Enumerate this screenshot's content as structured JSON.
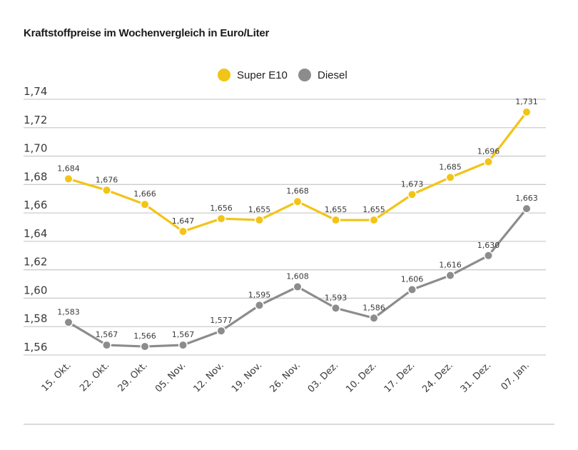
{
  "chart_data": {
    "type": "line",
    "title": "Kraftstoffpreise im Wochenvergleich in Euro/Liter",
    "xlabel": "",
    "ylabel": "",
    "categories": [
      "15. Okt.",
      "22. Okt.",
      "29. Okt.",
      "05. Nov.",
      "12. Nov.",
      "19. Nov.",
      "26. Nov.",
      "03. Dez.",
      "10. Dez.",
      "17. Dez.",
      "24. Dez.",
      "31. Dez.",
      "07. Jan."
    ],
    "series": [
      {
        "name": "Super E10",
        "color": "#f2c417",
        "values": [
          1.684,
          1.676,
          1.666,
          1.647,
          1.656,
          1.655,
          1.668,
          1.655,
          1.655,
          1.673,
          1.685,
          1.696,
          1.731
        ],
        "labels": [
          "1,684",
          "1,676",
          "1,666",
          "1,647",
          "1,656",
          "1,655",
          "1,668",
          "1,655",
          "1,655",
          "1,673",
          "1,685",
          "1,696",
          "1,731"
        ]
      },
      {
        "name": "Diesel",
        "color": "#8c8c8c",
        "values": [
          1.583,
          1.567,
          1.566,
          1.567,
          1.577,
          1.595,
          1.608,
          1.593,
          1.586,
          1.606,
          1.616,
          1.63,
          1.663
        ],
        "labels": [
          "1,583",
          "1,567",
          "1,566",
          "1,567",
          "1,577",
          "1,595",
          "1,608",
          "1,593",
          "1,586",
          "1,606",
          "1,616",
          "1,630",
          "1,663"
        ]
      }
    ],
    "ylim": [
      1.56,
      1.74
    ],
    "yticks": [
      1.56,
      1.58,
      1.6,
      1.62,
      1.64,
      1.66,
      1.68,
      1.7,
      1.72,
      1.74
    ],
    "ytick_labels": [
      "1,56",
      "1,58",
      "1,60",
      "1,62",
      "1,64",
      "1,66",
      "1,68",
      "1,70",
      "1,72",
      "1,74"
    ],
    "grid": true,
    "legend_position": "top-center",
    "gridline_color": "#cccccc"
  }
}
